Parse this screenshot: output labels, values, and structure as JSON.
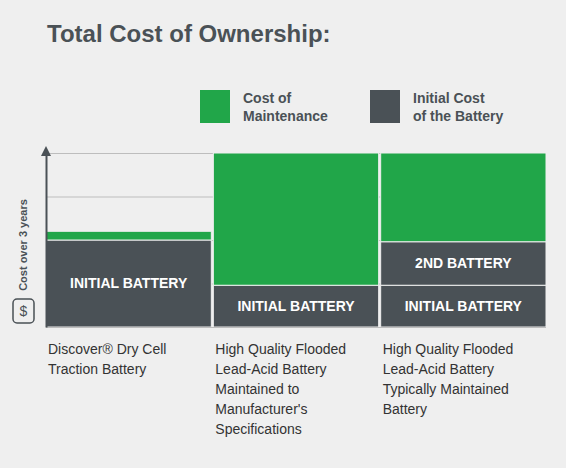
{
  "chart_data": {
    "type": "bar",
    "title": "Total Cost of Ownership:",
    "ylabel": "Cost over 3 years",
    "axis_symbol": "$",
    "categories": [
      "Discover® Dry Cell Traction Battery",
      "High Quality Flooded Lead-Acid Battery Maintained to Manufacturer's Specifications",
      "High Quality Flooded Lead-Acid Battery Typically Maintained Battery"
    ],
    "series": [
      {
        "name": "Initial Cost of the Battery",
        "color": "#4a5156",
        "values": [
          50,
          24,
          24
        ],
        "segment_labels": [
          "INITIAL BATTERY",
          "INITIAL BATTERY",
          "INITIAL BATTERY"
        ]
      },
      {
        "color": "#4a5156",
        "values": [
          null,
          null,
          25
        ],
        "segment_labels": [
          null,
          null,
          "2ND BATTERY"
        ]
      },
      {
        "name": "Cost of Maintenance",
        "color": "#21a649",
        "values": [
          5,
          76,
          51
        ]
      }
    ],
    "ylim": [
      0,
      100
    ],
    "yticks": [
      0,
      25,
      50,
      75,
      100
    ],
    "grid": true,
    "stacked": true,
    "tick_labels": false,
    "legend": "top"
  }
}
